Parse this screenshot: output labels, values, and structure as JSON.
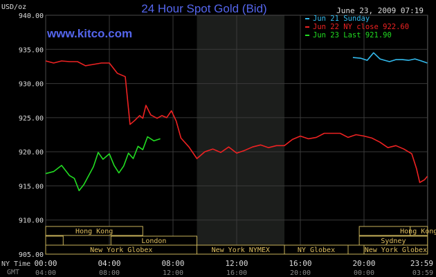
{
  "chart_data": {
    "type": "line",
    "title": "24 Hour Spot Gold (Bid)",
    "ylabel": "USD/oz",
    "timestamp": "June 23, 2009 07:19",
    "watermark": "www.kitco.com",
    "ylim": [
      905,
      940
    ],
    "y_ticks": [
      905,
      910,
      915,
      920,
      925,
      930,
      935,
      940
    ],
    "y_tick_labels": [
      "905.00",
      "910.00",
      "915.00",
      "920.00",
      "925.00",
      "930.00",
      "935.00",
      "940.00"
    ],
    "xlim": [
      0,
      24
    ],
    "x_ticks_ny": [
      0,
      4,
      8,
      12,
      16,
      20,
      23.983
    ],
    "x_tick_labels_ny": [
      "00:00",
      "04:00",
      "08:00",
      "12:00",
      "16:00",
      "20:00",
      "23:59"
    ],
    "x_tick_labels_gmt": [
      "04:00",
      "08:00",
      "12:00",
      "16:00",
      "20:00",
      "00:00",
      "03:59"
    ],
    "x_row_label_ny": "NY Time",
    "x_row_label_gmt": "GMT",
    "grid": true,
    "legend_position": "top-right",
    "shaded_region": [
      9.5,
      15
    ],
    "series": [
      {
        "name": "Jun 21 Sunday",
        "legend_label": "Jun 21 Sunday",
        "color": "#33bbee",
        "x": [
          19.3,
          19.8,
          20.2,
          20.6,
          21.0,
          21.3,
          21.6,
          22.0,
          22.4,
          22.8,
          23.2,
          23.6,
          23.98
        ],
        "y": [
          933.8,
          933.7,
          933.4,
          934.5,
          933.6,
          933.4,
          933.2,
          933.5,
          933.5,
          933.4,
          933.6,
          933.3,
          933.0
        ]
      },
      {
        "name": "Jun 22 NY close",
        "legend_label": "Jun 22 NY close 922.60",
        "color": "#ee2222",
        "x": [
          0.0,
          0.5,
          1.0,
          1.5,
          2.0,
          2.5,
          3.0,
          3.5,
          4.0,
          4.5,
          5.0,
          5.3,
          5.6,
          5.9,
          6.1,
          6.3,
          6.6,
          7.0,
          7.3,
          7.6,
          7.9,
          8.2,
          8.5,
          9.0,
          9.5,
          10.0,
          10.5,
          11.0,
          11.5,
          12.0,
          12.5,
          13.0,
          13.5,
          14.0,
          14.5,
          15.0,
          15.5,
          16.0,
          16.5,
          17.0,
          17.5,
          18.0,
          18.5,
          19.0,
          19.5,
          20.0,
          20.5,
          21.0,
          21.5,
          22.0,
          22.5,
          23.0,
          23.3,
          23.5,
          23.8,
          23.98
        ],
        "y": [
          933.3,
          933.0,
          933.3,
          933.2,
          933.2,
          932.6,
          932.8,
          933.0,
          933.0,
          931.5,
          931.0,
          924.0,
          924.6,
          925.3,
          924.9,
          926.8,
          925.4,
          924.9,
          925.3,
          925.0,
          926.0,
          924.5,
          922.0,
          920.7,
          919.0,
          920.0,
          920.4,
          919.9,
          920.7,
          919.8,
          920.2,
          920.7,
          921.0,
          920.6,
          920.9,
          920.9,
          921.8,
          922.3,
          921.9,
          922.1,
          922.7,
          922.7,
          922.7,
          922.1,
          922.5,
          922.3,
          922.0,
          921.4,
          920.6,
          920.9,
          920.4,
          919.7,
          917.5,
          915.5,
          915.9,
          916.4
        ]
      },
      {
        "name": "Jun 23 Last",
        "legend_label": "Jun 23 Last 921.90",
        "color": "#22dd22",
        "x": [
          0.0,
          0.5,
          1.0,
          1.5,
          1.8,
          2.1,
          2.4,
          2.7,
          3.0,
          3.3,
          3.6,
          4.0,
          4.3,
          4.6,
          4.9,
          5.2,
          5.5,
          5.8,
          6.1,
          6.4,
          6.8,
          7.2
        ],
        "y": [
          916.8,
          917.1,
          918.0,
          916.5,
          916.1,
          914.3,
          915.2,
          916.5,
          917.8,
          919.9,
          918.9,
          919.7,
          918.0,
          916.9,
          917.9,
          919.8,
          919.0,
          920.8,
          920.3,
          922.2,
          921.6,
          921.9
        ]
      }
    ],
    "sessions": [
      {
        "name": "Hong Kong",
        "row": 0,
        "start": 0.0,
        "end": 6.1
      },
      {
        "name": "London",
        "row": 1,
        "start": 4.1,
        "end": 9.5
      },
      {
        "name": "New York Globex",
        "row": 2,
        "start": 0.0,
        "end": 9.5
      },
      {
        "name": "New York NYMEX",
        "row": 2,
        "start": 9.5,
        "end": 15.0
      },
      {
        "name": "NY Globex",
        "row": 2,
        "start": 15.0,
        "end": 19.0
      },
      {
        "name": "Sydney",
        "row": 1,
        "start": 19.7,
        "end": 23.99
      },
      {
        "name": "Hong Kong",
        "row": 0,
        "start": 22.9,
        "end": 23.99
      },
      {
        "name": "New York Globex",
        "row": 2,
        "start": 20.0,
        "end": 23.99
      }
    ],
    "session_blank_boxes": [
      {
        "row": 1,
        "start": 0.0,
        "end": 1.1
      },
      {
        "row": 0,
        "start": 19.7,
        "end": 22.9
      },
      {
        "row": 2,
        "start": 19.0,
        "end": 20.0
      }
    ]
  }
}
